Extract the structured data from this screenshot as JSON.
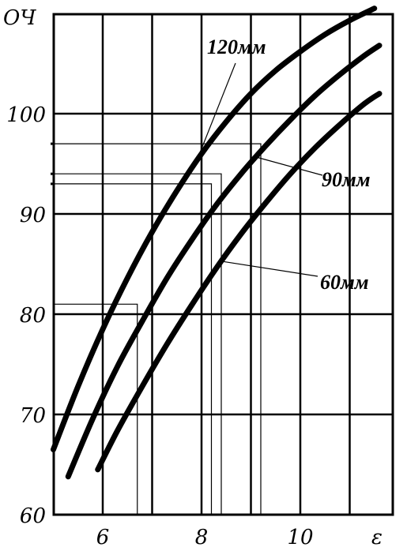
{
  "chart_data": {
    "type": "line",
    "ylabel": "ОЧ",
    "xlabel": "ε",
    "xlim": [
      5,
      11.8
    ],
    "ylim": [
      60,
      110
    ],
    "x_ticks": [
      6,
      8,
      10
    ],
    "x_tick_labels": [
      "6",
      "8",
      "10"
    ],
    "y_ticks": [
      60,
      70,
      80,
      90,
      100
    ],
    "y_tick_labels": [
      "60",
      "70",
      "80",
      "90",
      "100"
    ],
    "grid": true,
    "series": [
      {
        "name": "120мм",
        "x": [
          5.0,
          5.5,
          6.0,
          6.5,
          7.0,
          7.5,
          8.0,
          8.5,
          9.0,
          9.5,
          10.0,
          10.5,
          11.0,
          11.5
        ],
        "y": [
          66.5,
          72.8,
          78.5,
          83.6,
          88.2,
          92.3,
          96.0,
          99.2,
          102.0,
          104.3,
          106.2,
          107.9,
          109.3,
          110.5
        ]
      },
      {
        "name": "90мм",
        "x": [
          5.3,
          5.8,
          6.3,
          6.8,
          7.3,
          7.8,
          8.3,
          8.8,
          9.3,
          9.8,
          10.3,
          10.8,
          11.3,
          11.6
        ],
        "y": [
          63.8,
          69.6,
          74.8,
          79.3,
          83.6,
          87.4,
          90.9,
          94.0,
          96.8,
          99.4,
          101.8,
          103.9,
          105.8,
          106.8
        ]
      },
      {
        "name": "60мм",
        "x": [
          5.9,
          6.3,
          6.8,
          7.3,
          7.8,
          8.3,
          8.8,
          9.3,
          9.8,
          10.3,
          10.8,
          11.3,
          11.6
        ],
        "y": [
          64.5,
          68.4,
          72.8,
          77.0,
          80.9,
          84.6,
          88.0,
          91.1,
          94.0,
          96.6,
          98.9,
          101.0,
          102.0
        ]
      }
    ],
    "annotations": [
      {
        "text": "120мм",
        "series": "120мм"
      },
      {
        "text": "90мм",
        "series": "90мм"
      },
      {
        "text": "60мм",
        "series": "60мм"
      }
    ],
    "reference_lines": [
      {
        "x": 9.2,
        "y": 97
      },
      {
        "x": 8.4,
        "y": 94
      },
      {
        "x": 8.2,
        "y": 93
      },
      {
        "x": 6.7,
        "y": 81
      }
    ]
  }
}
